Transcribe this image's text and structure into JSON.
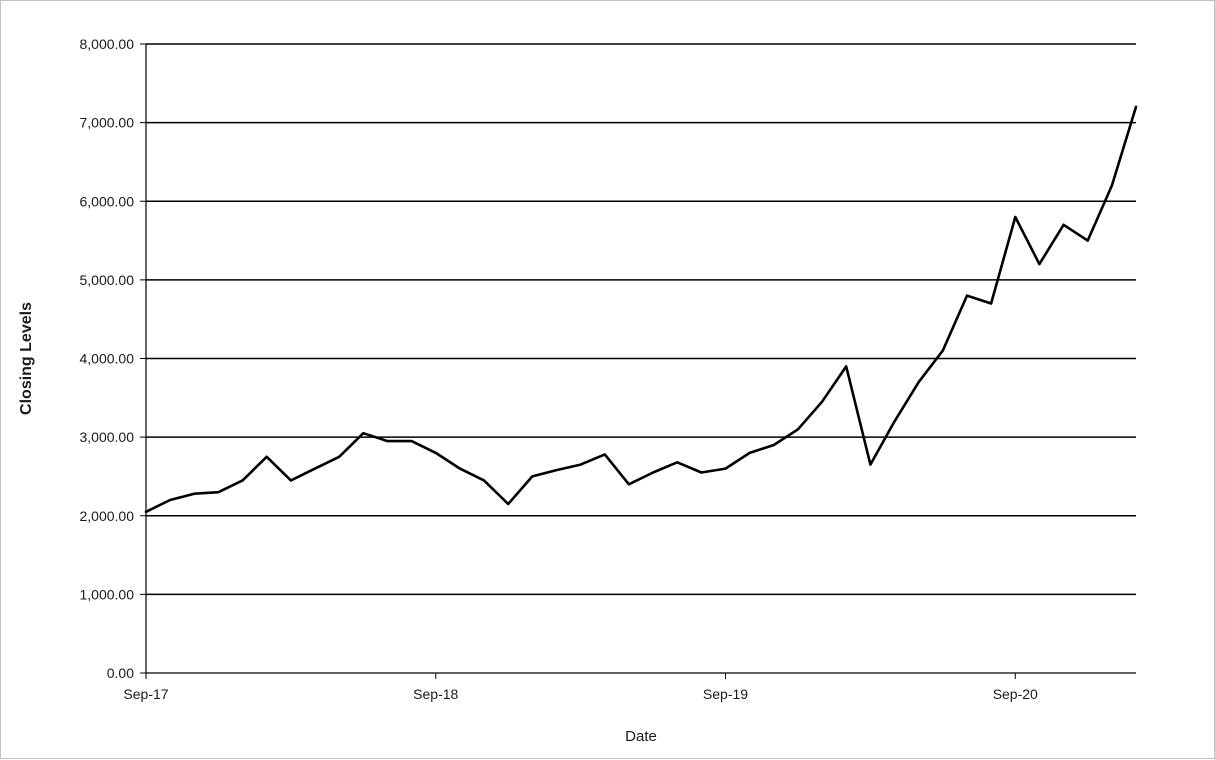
{
  "chart_data": {
    "type": "line",
    "title": "",
    "xlabel": "Date",
    "ylabel": "Closing Levels",
    "ylim": [
      0,
      8000
    ],
    "y_ticks": [
      0,
      1000,
      2000,
      3000,
      4000,
      5000,
      6000,
      7000,
      8000
    ],
    "y_tick_labels": [
      "0.00",
      "1,000.00",
      "2,000.00",
      "3,000.00",
      "4,000.00",
      "5,000.00",
      "6,000.00",
      "7,000.00",
      "8,000.00"
    ],
    "xlim": [
      "2017-09",
      "2021-02"
    ],
    "x_ticks": [
      "2017-09",
      "2018-09",
      "2019-09",
      "2020-09"
    ],
    "x_tick_labels": [
      "Sep-17",
      "Sep-18",
      "Sep-19",
      "Sep-20"
    ],
    "grid": "horizontal",
    "legend": "none",
    "line_color": "#000000",
    "series": [
      {
        "x": [
          "2017-09",
          "2017-10",
          "2017-11",
          "2017-12",
          "2018-01",
          "2018-02",
          "2018-03",
          "2018-04",
          "2018-05",
          "2018-06",
          "2018-07",
          "2018-08",
          "2018-09",
          "2018-10",
          "2018-11",
          "2018-12",
          "2019-01",
          "2019-02",
          "2019-03",
          "2019-04",
          "2019-05",
          "2019-06",
          "2019-07",
          "2019-08",
          "2019-09",
          "2019-10",
          "2019-11",
          "2019-12",
          "2020-01",
          "2020-02",
          "2020-03",
          "2020-04",
          "2020-05",
          "2020-06",
          "2020-07",
          "2020-08",
          "2020-09",
          "2020-10",
          "2020-11",
          "2020-12",
          "2021-01",
          "2021-02"
        ],
        "values": [
          2050,
          2200,
          2280,
          2300,
          2450,
          2750,
          2450,
          2600,
          2750,
          3050,
          2950,
          2950,
          2800,
          2600,
          2450,
          2150,
          2500,
          2580,
          2650,
          2780,
          2400,
          2550,
          2680,
          2550,
          2600,
          2800,
          2900,
          3100,
          3450,
          3900,
          2650,
          3200,
          3700,
          4100,
          4800,
          4700,
          5800,
          5200,
          5700,
          5500,
          6200,
          7200
        ]
      }
    ]
  }
}
